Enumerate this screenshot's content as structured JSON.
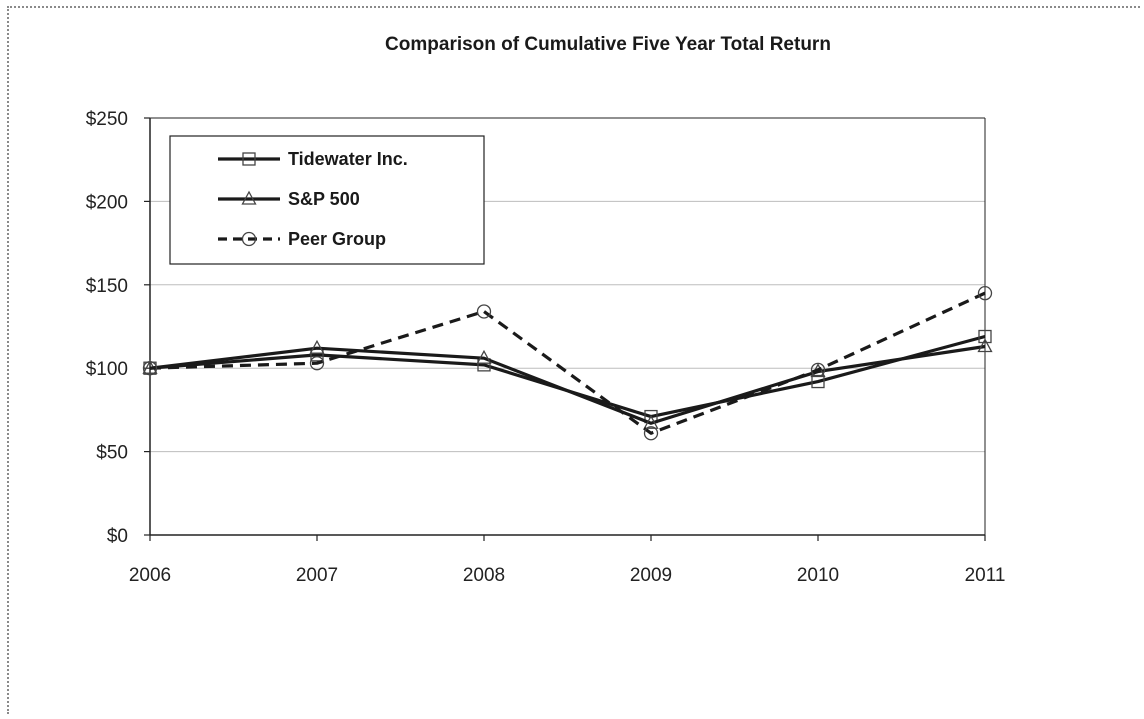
{
  "chart_data": {
    "type": "line",
    "title": "Comparison of Cumulative Five Year Total Return",
    "xlabel": "",
    "ylabel": "",
    "x": [
      "2006",
      "2007",
      "2008",
      "2009",
      "2010",
      "2011"
    ],
    "ylim": [
      0,
      250
    ],
    "yticks": [
      0,
      50,
      100,
      150,
      200,
      250
    ],
    "ytick_labels": [
      "$0",
      "$50",
      "$100",
      "$150",
      "$200",
      "$250"
    ],
    "grid": true,
    "legend_position": "top-left",
    "series": [
      {
        "name": "Tidewater Inc.",
        "values": [
          100,
          108,
          102,
          71,
          92,
          119
        ],
        "marker": "square",
        "dash": "solid",
        "color": "#1a1a1a"
      },
      {
        "name": "S&P 500",
        "values": [
          100,
          112,
          106,
          67,
          98,
          113
        ],
        "marker": "triangle",
        "dash": "solid",
        "color": "#1a1a1a"
      },
      {
        "name": "Peer Group",
        "values": [
          100,
          103,
          134,
          61,
          99,
          145
        ],
        "marker": "circle",
        "dash": "dashed",
        "color": "#1a1a1a"
      }
    ]
  }
}
